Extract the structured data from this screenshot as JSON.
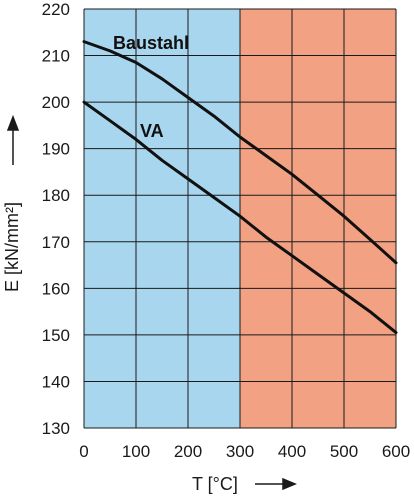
{
  "chart_data": {
    "type": "line",
    "title": "",
    "xlabel": "T [°C]",
    "ylabel": "E [kN/mm²]",
    "xlim": [
      0,
      600
    ],
    "ylim": [
      130,
      220
    ],
    "x_ticks": [
      "0",
      "100",
      "200",
      "300",
      "400",
      "500",
      "600"
    ],
    "y_ticks": [
      "130",
      "140",
      "150",
      "160",
      "170",
      "180",
      "190",
      "200",
      "210",
      "220"
    ],
    "grid": true,
    "regions": [
      {
        "x_from": 0,
        "x_to": 300,
        "color": "#a9d6ef"
      },
      {
        "x_from": 300,
        "x_to": 600,
        "color": "#f2a183"
      }
    ],
    "series": [
      {
        "name": "Baustahl",
        "x": [
          0,
          50,
          100,
          150,
          200,
          250,
          300,
          350,
          400,
          450,
          500,
          550,
          600
        ],
        "values": [
          213,
          211,
          208.5,
          205,
          201,
          197,
          192.5,
          188.5,
          184.5,
          180,
          175.5,
          170.5,
          165.5
        ]
      },
      {
        "name": "VA",
        "x": [
          0,
          50,
          100,
          150,
          200,
          250,
          300,
          350,
          400,
          450,
          500,
          550,
          600
        ],
        "values": [
          200,
          196,
          192,
          187.5,
          183.5,
          179.5,
          175.5,
          171,
          167,
          163,
          159,
          155,
          150.5
        ]
      }
    ],
    "line_color": "#111111"
  }
}
